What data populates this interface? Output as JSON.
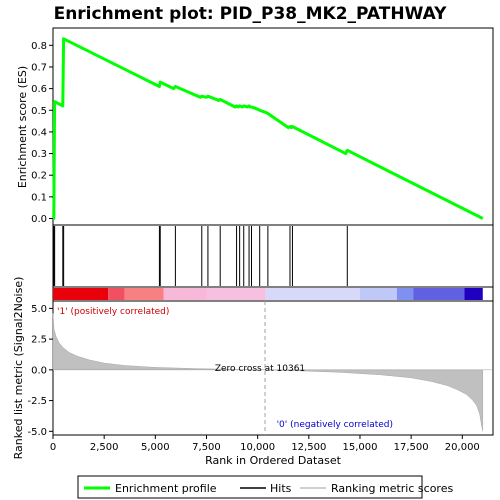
{
  "title": "Enrichment plot: PID_P38_MK2_PATHWAY",
  "colors": {
    "enrichment_line": "#00ff00",
    "hits": "#000000",
    "metric_fill": "#c0c0c0",
    "positive_label": "#cc0000",
    "negative_label": "#0000cc",
    "zero_cross_line": "#a0a0a0"
  },
  "chart_data": [
    {
      "type": "line",
      "panel": "enrichment",
      "ylabel": "Enrichment score (ES)",
      "xlim": [
        0,
        21500
      ],
      "ylim": [
        -0.03,
        0.88
      ],
      "yticks": [
        0.0,
        0.1,
        0.2,
        0.3,
        0.4,
        0.5,
        0.6,
        0.7,
        0.8
      ],
      "ytick_labels": [
        "0.0",
        "0.1",
        "0.2",
        "0.3",
        "0.4",
        "0.5",
        "0.6",
        "0.7",
        "0.8"
      ],
      "series": [
        {
          "name": "Enrichment profile",
          "x": [
            0,
            40,
            80,
            480,
            520,
            5200,
            5240,
            5900,
            5980,
            7200,
            7270,
            7500,
            7570,
            8100,
            8170,
            8900,
            8970,
            9050,
            9120,
            9250,
            9320,
            9500,
            9580,
            9620,
            9700,
            10000,
            10100,
            10400,
            10500,
            11500,
            11580,
            11650,
            11700,
            14300,
            14380,
            21000
          ],
          "y": [
            0.0,
            0.0,
            0.54,
            0.52,
            0.83,
            0.61,
            0.63,
            0.6,
            0.61,
            0.56,
            0.565,
            0.56,
            0.565,
            0.545,
            0.55,
            0.515,
            0.52,
            0.515,
            0.52,
            0.515,
            0.52,
            0.515,
            0.52,
            0.515,
            0.515,
            0.505,
            0.5,
            0.49,
            0.485,
            0.42,
            0.425,
            0.42,
            0.425,
            0.3,
            0.315,
            0.0
          ]
        }
      ]
    },
    {
      "type": "scatter",
      "panel": "hits",
      "series": [
        {
          "name": "Hits",
          "x": [
            40,
            80,
            480,
            520,
            5200,
            5240,
            5980,
            7270,
            7570,
            8170,
            8970,
            9120,
            9320,
            9580,
            9700,
            10100,
            10500,
            11580,
            11700,
            14380
          ]
        }
      ]
    },
    {
      "type": "area",
      "panel": "ranked_list",
      "xlabel": "Rank in Ordered Dataset",
      "ylabel": "Ranked list metric (Signal2Noise)",
      "xlim": [
        0,
        21500
      ],
      "ylim": [
        -5.3,
        5.6
      ],
      "xticks": [
        0,
        2500,
        5000,
        7500,
        10000,
        12500,
        15000,
        17500,
        20000
      ],
      "xtick_labels": [
        "0",
        "2,500",
        "5,000",
        "7,500",
        "10,000",
        "12,500",
        "15,000",
        "17,500",
        "20,000"
      ],
      "yticks": [
        5.0,
        2.5,
        0.0,
        -2.5,
        -5.0
      ],
      "ytick_labels": [
        "5.0",
        "2.5",
        "0.0",
        "-2.5",
        "-5.0"
      ],
      "series": [
        {
          "name": "Ranking metric scores",
          "x": [
            0,
            50,
            150,
            300,
            500,
            800,
            1200,
            1800,
            2500,
            3500,
            5000,
            7000,
            9000,
            10361,
            12000,
            14000,
            16000,
            17500,
            18500,
            19300,
            19800,
            20200,
            20500,
            20700,
            20850,
            20950,
            21000
          ],
          "y": [
            4.6,
            3.3,
            2.7,
            2.2,
            1.8,
            1.4,
            1.1,
            0.8,
            0.55,
            0.35,
            0.2,
            0.1,
            0.03,
            0.0,
            -0.08,
            -0.2,
            -0.4,
            -0.65,
            -0.95,
            -1.3,
            -1.65,
            -2.0,
            -2.45,
            -2.9,
            -3.6,
            -4.6,
            -5.0
          ]
        }
      ],
      "annotations": {
        "zero_cross": "Zero cross at 10361",
        "zero_cross_x": 10361,
        "positive": "'1' (positively correlated)",
        "negative": "'0' (negatively correlated)"
      }
    }
  ],
  "heatmap_bar": [
    {
      "from": 0,
      "to": 2700,
      "color": "#e8000a"
    },
    {
      "from": 2700,
      "to": 3500,
      "color": "#f05060"
    },
    {
      "from": 3500,
      "to": 5400,
      "color": "#f88080"
    },
    {
      "from": 5400,
      "to": 7500,
      "color": "#f8b8d8"
    },
    {
      "from": 7500,
      "to": 10400,
      "color": "#f8c0e0"
    },
    {
      "from": 10400,
      "to": 15000,
      "color": "#d8d8f8"
    },
    {
      "from": 15000,
      "to": 16800,
      "color": "#c0c8f8"
    },
    {
      "from": 16800,
      "to": 17600,
      "color": "#8090f0"
    },
    {
      "from": 17600,
      "to": 20100,
      "color": "#6060e0"
    },
    {
      "from": 20100,
      "to": 21000,
      "color": "#2000c0"
    }
  ],
  "legend": {
    "items": [
      {
        "label": "Enrichment profile",
        "kind": "line",
        "color": "#00ff00"
      },
      {
        "label": "Hits",
        "kind": "line",
        "color": "#000000"
      },
      {
        "label": "Ranking metric scores",
        "kind": "line",
        "color": "#c0c0c0"
      }
    ]
  }
}
